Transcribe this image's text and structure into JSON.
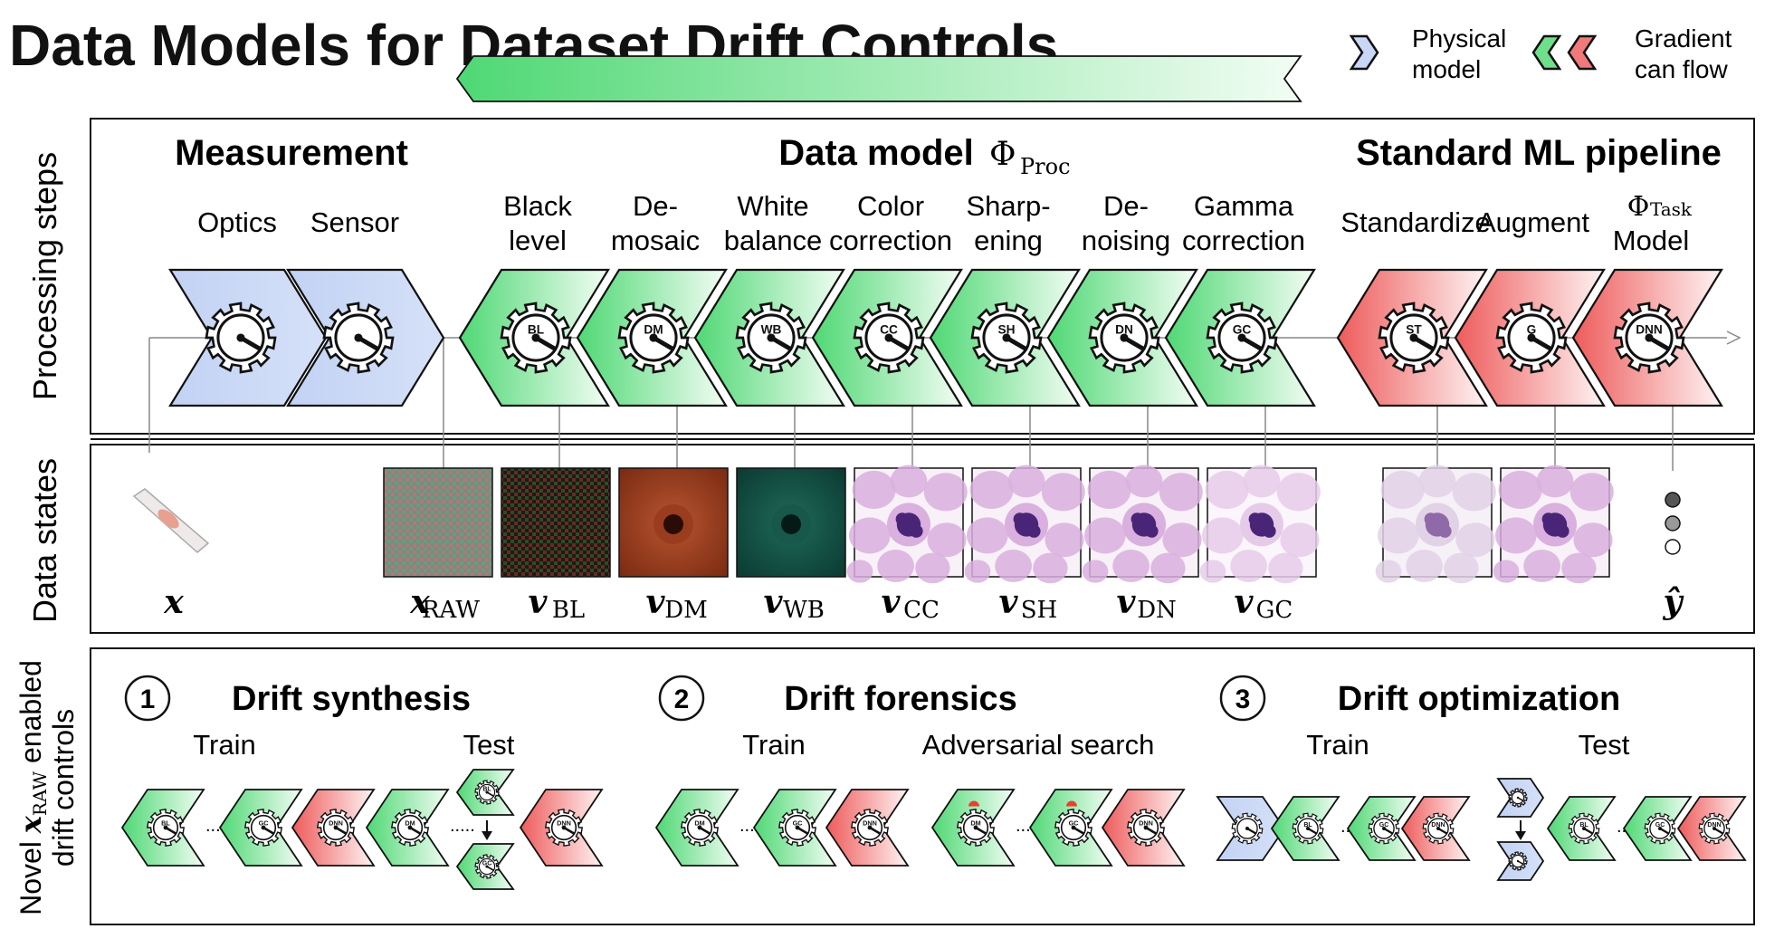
{
  "title": "Data Models for Dataset Drift Controls",
  "legend": {
    "physical_label": [
      "Physical",
      "model"
    ],
    "gradient_label": [
      "Gradient",
      "can flow"
    ],
    "colors": {
      "physical": "#c9d6f5",
      "gradient_green": "#6fe08a",
      "gradient_red": "#f07a7a"
    }
  },
  "row_labels": {
    "processing": "Processing steps",
    "data_states": "Data states",
    "controls_line1_pre": "Novel ",
    "controls_line1_sym": "x",
    "controls_line1_sub": "RAW",
    "controls_line1_post": " enabled",
    "controls_line2": "drift controls"
  },
  "sections": {
    "measurement": "Measurement",
    "data_model": "Data model",
    "data_model_sym": "Φ",
    "data_model_sub": "Proc",
    "ml": "Standard ML pipeline"
  },
  "steps": [
    {
      "label": [
        "Optics"
      ],
      "kind": "physical",
      "code": ""
    },
    {
      "label": [
        "Sensor"
      ],
      "kind": "physical",
      "code": ""
    },
    {
      "label": [
        "Black",
        "level"
      ],
      "kind": "green",
      "code": "BL"
    },
    {
      "label": [
        "De-",
        "mosaic"
      ],
      "kind": "green",
      "code": "DM"
    },
    {
      "label": [
        "White",
        "balance"
      ],
      "kind": "green",
      "code": "WB"
    },
    {
      "label": [
        "Color",
        "correction"
      ],
      "kind": "green",
      "code": "CC"
    },
    {
      "label": [
        "Sharp-",
        "ening"
      ],
      "kind": "green",
      "code": "SH"
    },
    {
      "label": [
        "De-",
        "noising"
      ],
      "kind": "green",
      "code": "DN"
    },
    {
      "label": [
        "Gamma",
        "correction"
      ],
      "kind": "green",
      "code": "GC"
    },
    {
      "label": [
        "Standardize"
      ],
      "kind": "red",
      "code": "ST"
    },
    {
      "label": [
        "Augment"
      ],
      "kind": "red",
      "code": "G"
    },
    {
      "label": [
        "Model"
      ],
      "kind": "red",
      "code": "DNN",
      "sym": "Φ",
      "sub": "Task"
    }
  ],
  "states": [
    {
      "sym": "x",
      "sub": "",
      "kind": "slide"
    },
    {
      "sym": "x",
      "sub": "RAW",
      "kind": "raw"
    },
    {
      "sym": "v",
      "sub": "BL",
      "kind": "bl"
    },
    {
      "sym": "v",
      "sub": "DM",
      "kind": "dm"
    },
    {
      "sym": "v",
      "sub": "WB",
      "kind": "wb"
    },
    {
      "sym": "v",
      "sub": "CC",
      "kind": "cell"
    },
    {
      "sym": "v",
      "sub": "SH",
      "kind": "cell"
    },
    {
      "sym": "v",
      "sub": "DN",
      "kind": "cell"
    },
    {
      "sym": "v",
      "sub": "GC",
      "kind": "cell_light"
    },
    {
      "sym": "",
      "sub": "",
      "kind": "cell_pale"
    },
    {
      "sym": "",
      "sub": "",
      "kind": "cell_aug"
    },
    {
      "sym": "ŷ",
      "sub": "",
      "kind": "dots"
    }
  ],
  "controls": [
    {
      "num": "1",
      "title": "Drift synthesis",
      "left": "Train",
      "right": "Test"
    },
    {
      "num": "2",
      "title": "Drift forensics",
      "left": "Train",
      "right": "Adversarial search"
    },
    {
      "num": "3",
      "title": "Drift optimization",
      "left": "Train",
      "right": "Test"
    }
  ],
  "mini_codes": {
    "c1_train": [
      "BL",
      "GC",
      "DNN"
    ],
    "c1_test": [
      "DM",
      "BL",
      "GC",
      "DNN"
    ],
    "c2_train": [
      "DM",
      "GC",
      "DNN"
    ],
    "c2_adv": [
      "DM",
      "GC",
      "DNN"
    ],
    "c3_train": [
      "",
      "BL",
      "GC",
      "DNN"
    ],
    "c3_test": [
      "",
      "",
      "BL",
      "GC",
      "DNN"
    ]
  },
  "ellipsis": "....."
}
